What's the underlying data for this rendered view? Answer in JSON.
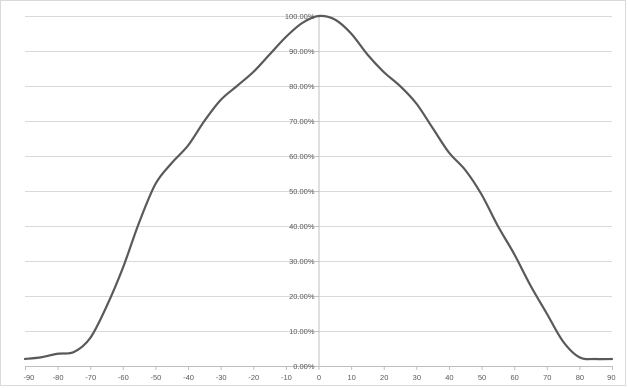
{
  "chart_data": {
    "type": "line",
    "title": "",
    "xlabel": "",
    "ylabel": "",
    "xlim": [
      -90,
      90
    ],
    "ylim": [
      0,
      100
    ],
    "x_ticks": [
      -90,
      -80,
      -70,
      -60,
      -50,
      -40,
      -30,
      -20,
      -10,
      0,
      10,
      20,
      30,
      40,
      50,
      60,
      70,
      80,
      90
    ],
    "x_tick_labels": [
      "-90",
      "-80",
      "-70",
      "-60",
      "-50",
      "-40",
      "-30",
      "-20",
      "-10",
      "0",
      "10",
      "20",
      "30",
      "40",
      "50",
      "60",
      "70",
      "80",
      "90"
    ],
    "y_ticks": [
      0,
      10,
      20,
      30,
      40,
      50,
      60,
      70,
      80,
      90,
      100
    ],
    "y_tick_labels": [
      "0.00%",
      "10.00%",
      "20.00%",
      "30.00%",
      "40.00%",
      "50.00%",
      "60.00%",
      "70.00%",
      "80.00%",
      "90.00%",
      "100.00%"
    ],
    "grid": "horizontal",
    "legend": "none",
    "series": [
      {
        "color": "#595959",
        "x": [
          -90,
          -85,
          -80,
          -75,
          -70,
          -65,
          -60,
          -55,
          -50,
          -45,
          -40,
          -35,
          -30,
          -25,
          -20,
          -15,
          -10,
          -5,
          0,
          5,
          10,
          15,
          20,
          25,
          30,
          35,
          40,
          45,
          50,
          55,
          60,
          65,
          70,
          75,
          80,
          85,
          90
        ],
        "values": [
          2,
          2.5,
          3.5,
          4,
          8,
          17,
          28,
          41,
          52,
          58,
          63,
          70,
          76,
          80,
          84,
          89,
          94,
          98,
          100,
          99,
          95,
          89,
          84,
          80,
          75,
          68,
          61,
          56,
          49,
          40,
          32,
          23,
          15,
          7,
          2.5,
          2,
          2
        ]
      }
    ]
  }
}
